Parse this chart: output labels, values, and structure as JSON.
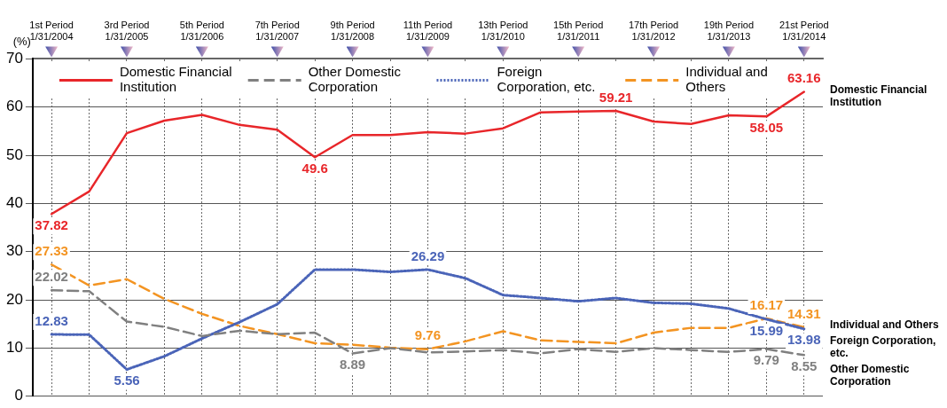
{
  "chart_data": {
    "type": "line",
    "ylabel": "(%)",
    "categories": [
      "1st Period 1/31/2004",
      null,
      "3rd Period 1/31/2005",
      null,
      "5th Period 1/31/2006",
      null,
      "7th Period 1/31/2007",
      null,
      "9th Period 1/31/2008",
      null,
      "11th Period 1/31/2009",
      null,
      "13th Period 1/31/2010",
      null,
      "15th Period 1/31/2011",
      null,
      "17th Period 1/31/2012",
      null,
      "19th Period 1/31/2013",
      null,
      "21st Period 1/31/2014"
    ],
    "series": [
      {
        "name": "Domestic Financial Institution",
        "color": "#e8262a",
        "line_style": "solid",
        "values": [
          37.82,
          42.5,
          54.6,
          57.2,
          58.4,
          56.3,
          55.3,
          49.6,
          54.2,
          54.2,
          54.8,
          54.5,
          55.6,
          58.9,
          59.1,
          59.21,
          57.0,
          56.5,
          58.3,
          58.05,
          63.16
        ],
        "value_labels": [
          "37.82",
          null,
          null,
          null,
          null,
          null,
          null,
          "49.6",
          null,
          null,
          null,
          null,
          null,
          null,
          null,
          "59.21",
          null,
          null,
          null,
          "58.05",
          "63.16"
        ]
      },
      {
        "name": "Other Domestic Corporation",
        "color": "#808080",
        "line_style": "dashed",
        "values": [
          22.02,
          21.8,
          15.5,
          14.4,
          12.5,
          13.6,
          12.9,
          13.2,
          8.89,
          10.0,
          9.1,
          9.3,
          9.6,
          8.9,
          9.8,
          9.2,
          10.0,
          9.6,
          9.2,
          9.79,
          8.55
        ],
        "value_labels": [
          "22.02",
          null,
          null,
          null,
          null,
          null,
          null,
          null,
          "8.89",
          null,
          null,
          null,
          null,
          null,
          null,
          null,
          null,
          null,
          null,
          "9.79",
          "8.55"
        ]
      },
      {
        "name": "Foreign Corporation, etc.",
        "color": "#4a64b8",
        "line_style": "dotted",
        "values": [
          12.83,
          12.8,
          5.56,
          8.3,
          12.0,
          15.4,
          19.1,
          26.3,
          26.3,
          25.8,
          26.29,
          24.5,
          21.0,
          20.4,
          19.7,
          20.4,
          19.4,
          19.2,
          18.2,
          15.99,
          13.98
        ],
        "value_labels": [
          "12.83",
          null,
          "5.56",
          null,
          null,
          null,
          null,
          null,
          null,
          null,
          "26.29",
          null,
          null,
          null,
          null,
          null,
          null,
          null,
          null,
          "15.99",
          "13.98"
        ]
      },
      {
        "name": "Individual and Others",
        "color": "#f39422",
        "line_style": "dashed",
        "values": [
          27.33,
          23.0,
          24.3,
          20.2,
          17.1,
          14.6,
          12.9,
          11.0,
          10.7,
          10.1,
          9.76,
          11.4,
          13.5,
          11.6,
          11.3,
          11.0,
          13.2,
          14.2,
          14.2,
          16.17,
          14.31
        ],
        "value_labels": [
          "27.33",
          null,
          null,
          null,
          null,
          null,
          null,
          null,
          null,
          null,
          "9.76",
          null,
          null,
          null,
          null,
          null,
          null,
          null,
          null,
          "16.17",
          "14.31"
        ]
      }
    ],
    "ylim": [
      0,
      70
    ],
    "yticks": [
      0,
      10,
      20,
      30,
      40,
      50,
      60,
      70
    ],
    "grid": true,
    "legend": "top",
    "marker": "none"
  }
}
